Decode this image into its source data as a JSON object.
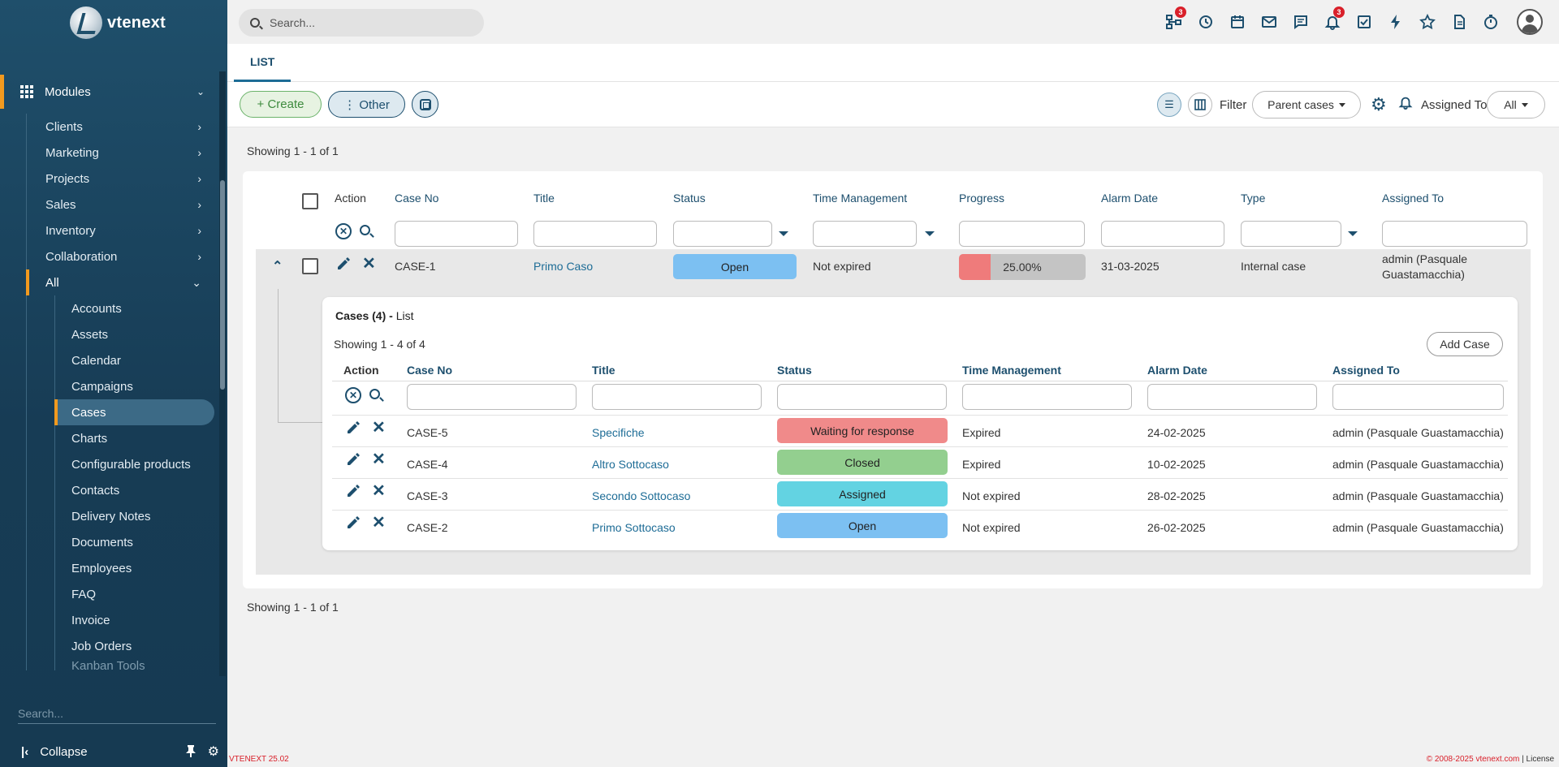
{
  "app": {
    "brand": "vtenext",
    "version_footer": "VTENEXT 25.02",
    "copyright_footer": "© 2008-2025 vtenext.com",
    "license_footer": "License"
  },
  "colors": {
    "sidebar": "#1f4f6b",
    "accent": "#f29a1f",
    "primary": "#1d4f6e",
    "link": "#1d6c96"
  },
  "sidebar": {
    "modules_label": "Modules",
    "groups": [
      {
        "label": "Clients",
        "icon": "chevron-right-icon"
      },
      {
        "label": "Marketing",
        "icon": "chevron-right-icon"
      },
      {
        "label": "Projects",
        "icon": "chevron-right-icon"
      },
      {
        "label": "Sales",
        "icon": "chevron-right-icon"
      },
      {
        "label": "Inventory",
        "icon": "chevron-right-icon"
      },
      {
        "label": "Collaboration",
        "icon": "chevron-right-icon"
      },
      {
        "label": "All",
        "icon": "chevron-down-icon"
      }
    ],
    "all_items": [
      "Accounts",
      "Assets",
      "Calendar",
      "Campaigns",
      "Cases",
      "Charts",
      "Configurable products",
      "Contacts",
      "Delivery Notes",
      "Documents",
      "Employees",
      "FAQ",
      "Invoice",
      "Job Orders",
      "Kanban Tools"
    ],
    "active_item": "Cases",
    "search_placeholder": "Search...",
    "collapse_label": "Collapse"
  },
  "topbar": {
    "search_placeholder": "Search...",
    "icons": [
      {
        "name": "org-chart-icon",
        "badge": "3"
      },
      {
        "name": "history-icon",
        "badge": ""
      },
      {
        "name": "calendar-icon",
        "badge": ""
      },
      {
        "name": "mail-icon",
        "badge": ""
      },
      {
        "name": "chat-icon",
        "badge": ""
      },
      {
        "name": "bell-icon",
        "badge": "3"
      },
      {
        "name": "tasks-icon",
        "badge": ""
      },
      {
        "name": "lightning-icon",
        "badge": ""
      },
      {
        "name": "star-icon",
        "badge": ""
      },
      {
        "name": "document-icon",
        "badge": ""
      },
      {
        "name": "timer-icon",
        "badge": ""
      }
    ]
  },
  "tabs": {
    "list": "LIST"
  },
  "toolbar": {
    "create_label": "+ Create",
    "other_label": "⋮ Other",
    "filter_label": "Filter",
    "filter_value": "Parent cases",
    "assigned_to_label": "Assigned To",
    "assigned_to_value": "All"
  },
  "list": {
    "showing_top": "Showing 1 - 1 of 1",
    "showing_bottom": "Showing 1 - 1 of 1",
    "columns": [
      "Action",
      "Case No",
      "Title",
      "Status",
      "Time Management",
      "Progress",
      "Alarm Date",
      "Type",
      "Assigned To"
    ],
    "row": {
      "case_no": "CASE-1",
      "title": "Primo Caso",
      "status": "Open",
      "status_color": "#7cc0f2",
      "time_management": "Not expired",
      "progress_label": "25.00%",
      "progress_value": 0.25,
      "alarm_date": "31-03-2025",
      "type": "Internal case",
      "assigned_to_line1": "admin (Pasquale",
      "assigned_to_line2": "Guastamacchia)"
    }
  },
  "sublist": {
    "title_bold": "Cases (4) -",
    "title_rest": " List",
    "showing": "Showing 1 - 4 of 4",
    "add_label": "Add Case",
    "columns": [
      "Action",
      "Case No",
      "Title",
      "Status",
      "Time Management",
      "Alarm Date",
      "Assigned To"
    ],
    "rows": [
      {
        "case_no": "CASE-5",
        "title": "Specifiche",
        "status": "Waiting for response",
        "status_color": "#f08a8a",
        "time_management": "Expired",
        "alarm_date": "24-02-2025",
        "assigned_to": "admin (Pasquale Guastamacchia)"
      },
      {
        "case_no": "CASE-4",
        "title": "Altro Sottocaso",
        "status": "Closed",
        "status_color": "#93cf8f",
        "time_management": "Expired",
        "alarm_date": "10-02-2025",
        "assigned_to": "admin (Pasquale Guastamacchia)"
      },
      {
        "case_no": "CASE-3",
        "title": "Secondo Sottocaso",
        "status": "Assigned",
        "status_color": "#63d3e2",
        "time_management": "Not expired",
        "alarm_date": "28-02-2025",
        "assigned_to": "admin (Pasquale Guastamacchia)"
      },
      {
        "case_no": "CASE-2",
        "title": "Primo Sottocaso",
        "status": "Open",
        "status_color": "#7cc0f2",
        "time_management": "Not expired",
        "alarm_date": "26-02-2025",
        "assigned_to": "admin (Pasquale Guastamacchia)"
      }
    ]
  }
}
